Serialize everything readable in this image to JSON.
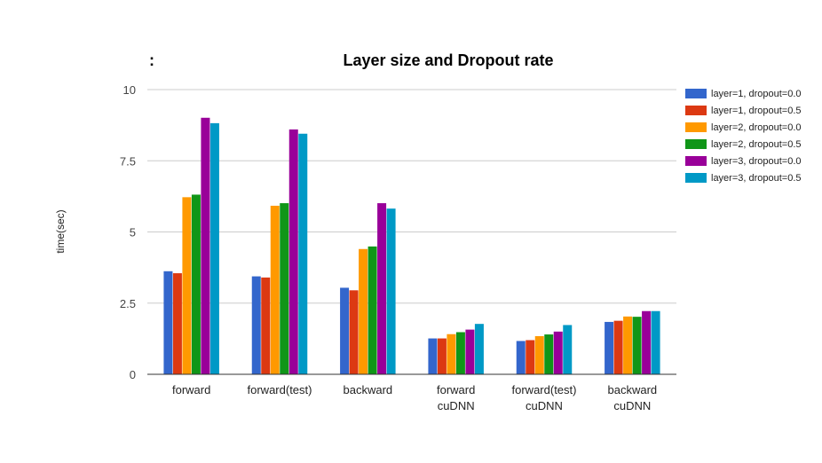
{
  "chart_data": {
    "type": "bar",
    "title": "Layer size and Dropout rate",
    "title_prefix": ":",
    "xlabel": "",
    "ylabel": "time(sec)",
    "ylim": [
      0,
      10
    ],
    "yticks": [
      0,
      2.5,
      5,
      7.5,
      10
    ],
    "ytick_labels": [
      "0",
      "2.5",
      "5",
      "7.5",
      "10"
    ],
    "grid": true,
    "legend_position": "right",
    "categories": [
      [
        "forward"
      ],
      [
        "forward(test)"
      ],
      [
        "backward"
      ],
      [
        "forward",
        "cuDNN"
      ],
      [
        "forward(test)",
        "cuDNN"
      ],
      [
        "backward",
        "cuDNN"
      ]
    ],
    "series": [
      {
        "name": "layer=1, dropout=0.0",
        "color": "#3366cc",
        "values": [
          3.62,
          3.44,
          3.04,
          1.26,
          1.17,
          1.84
        ]
      },
      {
        "name": "layer=1, dropout=0.5",
        "color": "#dc3912",
        "values": [
          3.55,
          3.4,
          2.95,
          1.26,
          1.2,
          1.88
        ]
      },
      {
        "name": "layer=2, dropout=0.0",
        "color": "#ff9900",
        "values": [
          6.22,
          5.92,
          4.4,
          1.41,
          1.34,
          2.03
        ]
      },
      {
        "name": "layer=2, dropout=0.5",
        "color": "#109618",
        "values": [
          6.31,
          6.01,
          4.49,
          1.48,
          1.4,
          2.02
        ]
      },
      {
        "name": "layer=3, dropout=0.0",
        "color": "#990099",
        "values": [
          9.01,
          8.6,
          6.01,
          1.57,
          1.5,
          2.22
        ]
      },
      {
        "name": "layer=3, dropout=0.5",
        "color": "#0099c6",
        "values": [
          8.82,
          8.45,
          5.82,
          1.77,
          1.73,
          2.22
        ]
      }
    ]
  }
}
